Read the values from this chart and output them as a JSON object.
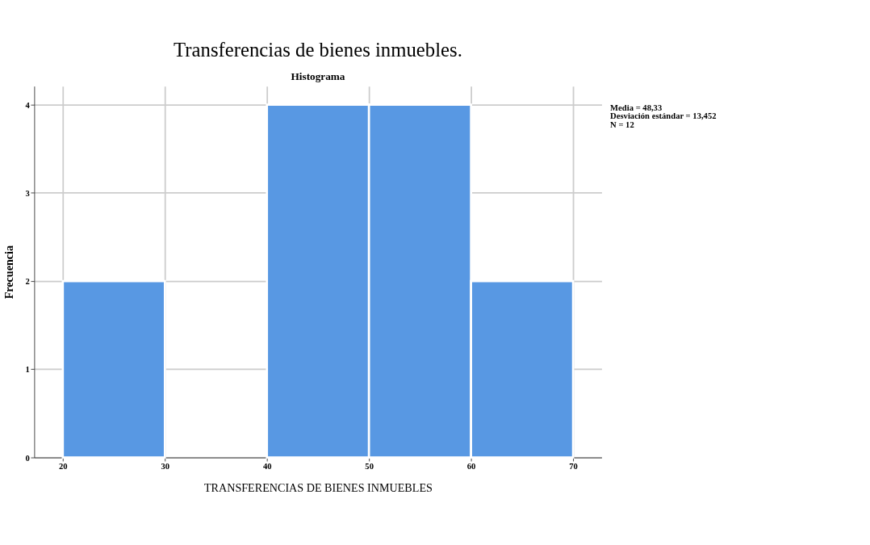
{
  "chart_data": {
    "type": "histogram",
    "title": "Transferencias de bienes inmuebles.",
    "subtitle": "Histograma",
    "xlabel": "TRANSFERENCIAS DE BIENES INMUEBLES",
    "ylabel": "Frecuencia",
    "bins": [
      20,
      30,
      40,
      50,
      60,
      70
    ],
    "values": [
      2,
      0,
      4,
      4,
      2
    ],
    "color": "#5898e3",
    "xlim": [
      17.2,
      72.8
    ],
    "xticks": [
      20,
      30,
      40,
      50,
      60,
      70
    ],
    "ylim": [
      0,
      4.21
    ],
    "yticks": [
      0,
      1,
      2,
      3,
      4
    ],
    "grid": true,
    "annotations": [
      "Media = 48,33",
      "Desviación estándar = 13,452",
      "N = 12"
    ]
  }
}
